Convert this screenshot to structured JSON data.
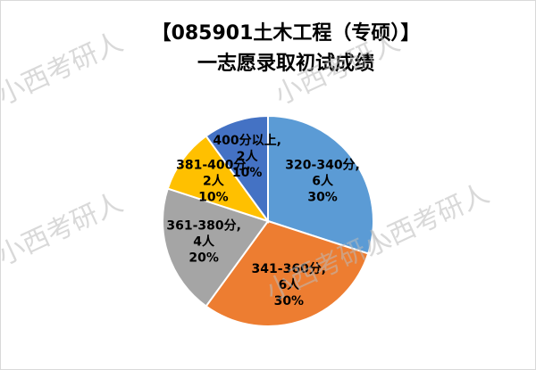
{
  "chart_data": {
    "type": "pie",
    "title": [
      "【085901土木工程（专硕）】",
      "一志愿录取初试成绩"
    ],
    "watermark": "小西考研人",
    "categories": [
      "320-340分,",
      "341-360分,",
      "361-380分,",
      "381-400分,",
      "400分以上,"
    ],
    "values": [
      6,
      6,
      4,
      2,
      2
    ],
    "value_labels": [
      "6人",
      "6人",
      "4人",
      "2人",
      "2人"
    ],
    "percents": [
      30,
      30,
      20,
      10,
      10
    ],
    "percent_labels": [
      "30%",
      "30%",
      "20%",
      "10%",
      "10%"
    ],
    "colors": [
      "#5b9bd5",
      "#ed7d31",
      "#a5a5a5",
      "#ffc000",
      "#4472c4"
    ]
  }
}
